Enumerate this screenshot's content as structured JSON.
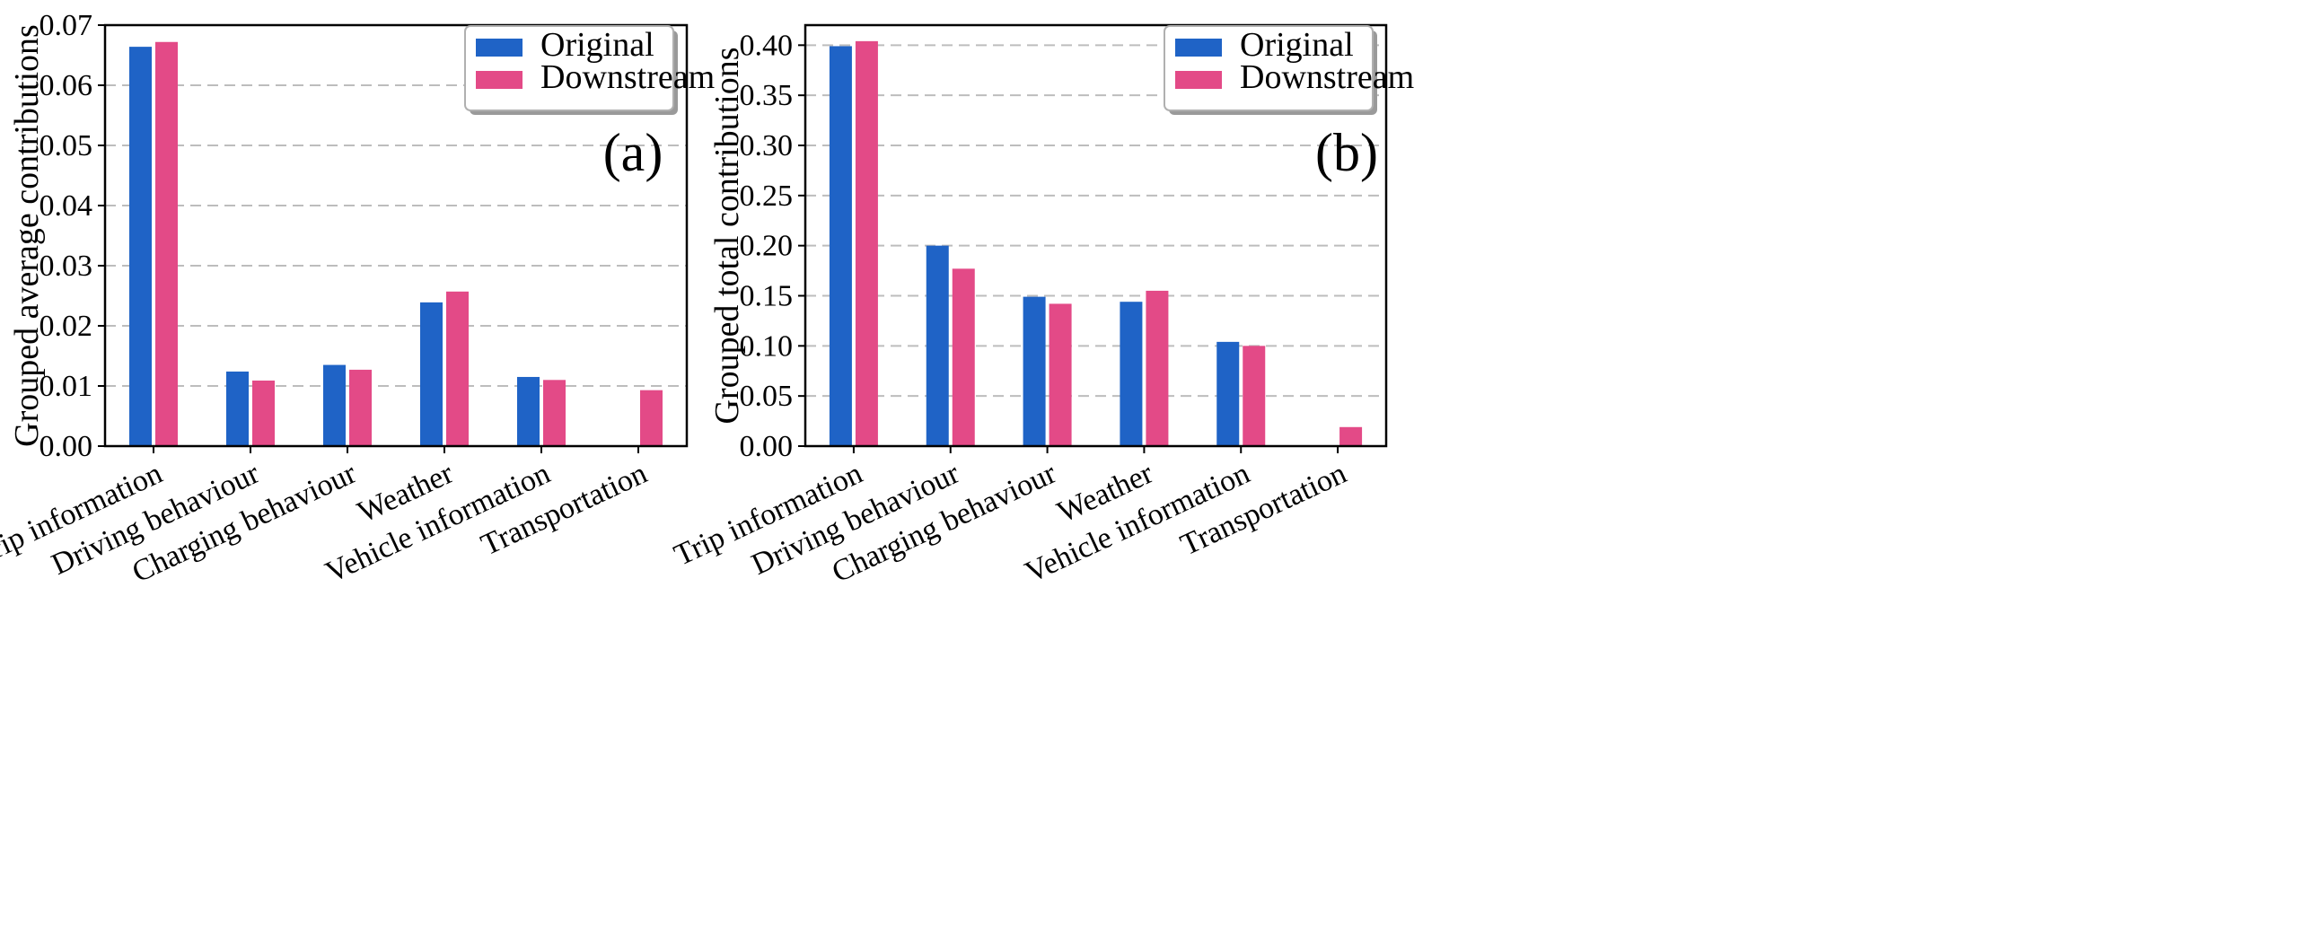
{
  "colors": {
    "original": "#1f63c6",
    "downstream": "#e34a87"
  },
  "chart_data": [
    {
      "type": "bar",
      "panel_label": "(a)",
      "categories": [
        "Trip information",
        "Driving behaviour",
        "Charging behaviour",
        "Weather",
        "Vehicle information",
        "Transportation"
      ],
      "series": [
        {
          "name": "Original",
          "values": [
            0.0664,
            0.0124,
            0.0135,
            0.0239,
            0.0115,
            null
          ]
        },
        {
          "name": "Downstream",
          "values": [
            0.0672,
            0.0109,
            0.0127,
            0.0257,
            0.011,
            0.0093
          ]
        }
      ],
      "title": "",
      "xlabel": "",
      "ylabel": "Grouped average contributions",
      "ylim": [
        0,
        0.07
      ],
      "yticks": [
        0.0,
        0.01,
        0.02,
        0.03,
        0.04,
        0.05,
        0.06,
        0.07
      ],
      "ytick_labels": [
        "0.00",
        "0.01",
        "0.02",
        "0.03",
        "0.04",
        "0.05",
        "0.06",
        "0.07"
      ],
      "grid": "y, dashed",
      "legend": [
        "Original",
        "Downstream"
      ],
      "legend_position": "top-right"
    },
    {
      "type": "bar",
      "panel_label": "(b)",
      "categories": [
        "Trip information",
        "Driving behaviour",
        "Charging behaviour",
        "Weather",
        "Vehicle information",
        "Transportation"
      ],
      "series": [
        {
          "name": "Original",
          "values": [
            0.399,
            0.2,
            0.149,
            0.144,
            0.104,
            null
          ]
        },
        {
          "name": "Downstream",
          "values": [
            0.404,
            0.177,
            0.142,
            0.155,
            0.1,
            0.019
          ]
        }
      ],
      "title": "",
      "xlabel": "",
      "ylabel": "Grouped total contributions",
      "ylim": [
        0,
        0.42
      ],
      "yticks": [
        0.0,
        0.05,
        0.1,
        0.15,
        0.2,
        0.25,
        0.3,
        0.35,
        0.4
      ],
      "ytick_labels": [
        "0.00",
        "0.05",
        "0.10",
        "0.15",
        "0.20",
        "0.25",
        "0.30",
        "0.35",
        "0.40"
      ],
      "grid": "y, dashed",
      "legend": [
        "Original",
        "Downstream"
      ],
      "legend_position": "top-right"
    }
  ]
}
